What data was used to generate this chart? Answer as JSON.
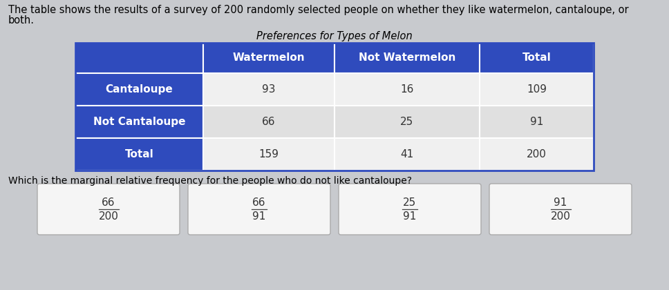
{
  "title": "Preferences for Types of Melon",
  "description_line1": "The table shows the results of a survey of 200 randomly selected people on whether they like watermelon, cantaloupe, or",
  "description_line2": "both.",
  "question": "Which is the marginal relative frequency for the people who do not like cantaloupe?",
  "col_headers": [
    "Watermelon",
    "Not Watermelon",
    "Total"
  ],
  "row_headers": [
    "Cantaloupe",
    "Not Cantaloupe",
    "Total"
  ],
  "data": [
    [
      93,
      16,
      109
    ],
    [
      66,
      25,
      91
    ],
    [
      159,
      41,
      200
    ]
  ],
  "header_bg": "#2f4bbd",
  "header_text": "#ffffff",
  "row_header_bg": "#2f4bbd",
  "row_header_text": "#ffffff",
  "data_bg_light": "#f0f0f0",
  "data_bg_mid": "#e0e0e0",
  "table_border": "#2f4bbd",
  "answer_choices": [
    {
      "num": "66",
      "den": "200"
    },
    {
      "num": "66",
      "den": "91"
    },
    {
      "num": "25",
      "den": "91"
    },
    {
      "num": "91",
      "den": "200"
    }
  ],
  "answer_box_bg": "#f5f5f5",
  "answer_box_border": "#aaaaaa",
  "bg_color": "#c8cace",
  "desc_fontsize": 10.5,
  "title_fontsize": 10.5,
  "question_fontsize": 10,
  "table_fontsize": 11,
  "answer_fontsize": 11
}
